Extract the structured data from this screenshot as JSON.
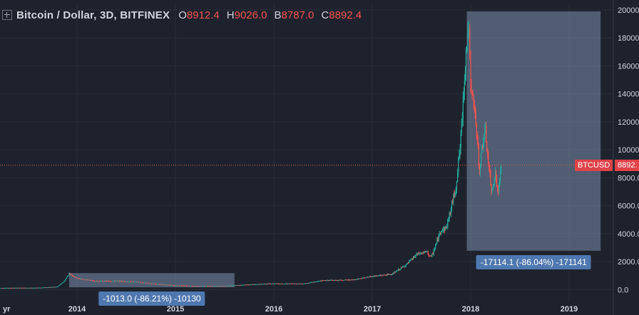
{
  "header": {
    "title": "Bitcoin / Dollar, 3D, BITFINEX",
    "ohlc": [
      {
        "key": "O",
        "value": "8912.4"
      },
      {
        "key": "H",
        "value": "9026.0"
      },
      {
        "key": "B",
        "value": "8787.0"
      },
      {
        "key": "C",
        "value": "8892.4"
      }
    ]
  },
  "price_tag": {
    "symbol": "BTCUSD",
    "value": "8892."
  },
  "measure_labels": {
    "first": "-1013.0 (-86.21%) -10130",
    "second": "-17114.1 (-86.04%) -171141"
  },
  "colors": {
    "background": "#1e222d",
    "grid": "#2a2e39",
    "up": "#26a69a",
    "down": "#ef5350",
    "measure_box": "#7b8eab",
    "measure_label": "#4f78b0"
  },
  "chart_data": {
    "type": "candlestick",
    "title": "Bitcoin / Dollar, 3D, BITFINEX",
    "y_ticks": [
      "20000.0",
      "18000.0",
      "16000.0",
      "14000.0",
      "12000.0",
      "10000.0",
      "8000.0",
      "6000.0",
      "4000.0",
      "2000.0",
      "0.0"
    ],
    "x_ticks": [
      "yr",
      "2014",
      "2015",
      "2016",
      "2017",
      "2018",
      "2019"
    ],
    "ylim": [
      -800,
      20400
    ],
    "grid": true,
    "last_price": 8892.4,
    "series": [
      {
        "x": [
          2013.0,
          2013.3,
          2013.6,
          2013.8,
          2013.87,
          2013.92,
          2014.0,
          2014.2,
          2014.4,
          2014.6,
          2014.8,
          2015.0,
          2015.2,
          2015.5,
          2015.8,
          2016.0,
          2016.3,
          2016.5,
          2016.8,
          2017.0,
          2017.2,
          2017.35,
          2017.45,
          2017.55,
          2017.6,
          2017.65,
          2017.7,
          2017.75,
          2017.8,
          2017.85,
          2017.9,
          2017.93,
          2017.96,
          2017.98,
          2018.0,
          2018.03,
          2018.06,
          2018.09,
          2018.12,
          2018.15,
          2018.18,
          2018.21,
          2018.25,
          2018.28,
          2018.31
        ],
        "y": [
          100,
          120,
          130,
          200,
          600,
          1150,
          800,
          600,
          620,
          550,
          400,
          300,
          250,
          260,
          380,
          430,
          420,
          650,
          700,
          950,
          1100,
          1800,
          2500,
          2700,
          2300,
          3300,
          4300,
          4400,
          5800,
          7400,
          10800,
          14500,
          17800,
          18900,
          14000,
          13500,
          11200,
          8500,
          10500,
          11200,
          9000,
          7000,
          8300,
          6800,
          8892
        ]
      }
    ],
    "measurements": [
      {
        "label": "-1013.0 (-86.21%) -10130",
        "x_start": 2013.92,
        "x_end": 2015.6,
        "y_top": 1175,
        "y_bottom": 162
      },
      {
        "label": "-17114.1 (-86.04%) -171141",
        "x_start": 2017.96,
        "x_end": 2019.32,
        "y_top": 19891,
        "y_bottom": 2777
      }
    ]
  }
}
